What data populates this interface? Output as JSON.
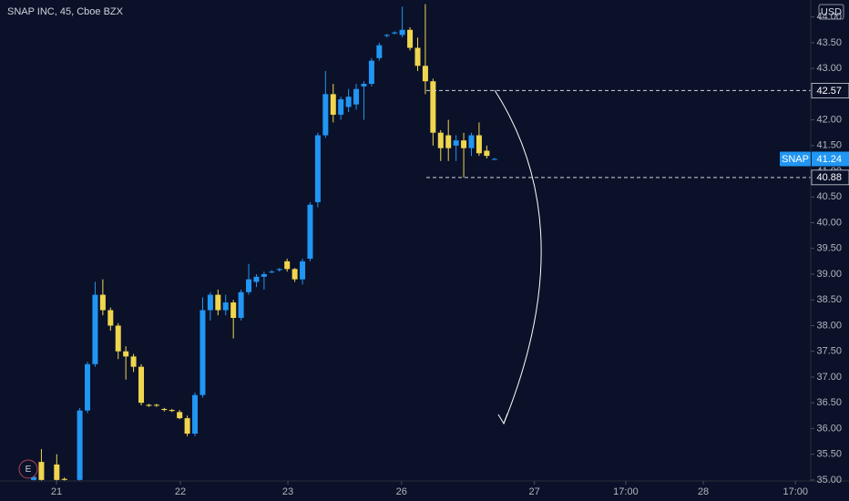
{
  "chart_data": {
    "type": "candlestick",
    "title": "SNAP INC, 45, Cboe BZX",
    "currency": "USD",
    "up_color": "#2196f3",
    "down_color": "#f0d64e",
    "x": [
      0,
      1,
      3,
      4,
      6,
      7,
      8,
      9,
      10,
      11,
      12,
      13,
      14,
      15,
      16,
      17,
      18,
      19,
      20,
      21,
      22,
      23,
      24,
      25,
      26,
      27,
      28,
      29,
      30,
      31,
      32,
      33,
      34,
      35,
      36,
      37,
      38,
      39,
      40,
      41,
      42,
      43,
      44,
      45,
      46,
      47,
      48,
      49,
      50,
      51,
      52,
      53,
      54,
      55,
      56,
      57,
      58,
      59,
      60
    ],
    "open": [
      35.0,
      35.35,
      35.3,
      35.02,
      35.0,
      36.35,
      37.25,
      38.6,
      38.3,
      38.0,
      37.5,
      37.4,
      37.2,
      36.46,
      36.46,
      36.38,
      36.36,
      36.32,
      36.2,
      35.9,
      36.65,
      38.3,
      38.6,
      38.3,
      38.45,
      38.15,
      38.65,
      38.85,
      38.95,
      39.04,
      39.08,
      39.25,
      39.1,
      38.9,
      39.3,
      40.4,
      41.7,
      42.5,
      42.1,
      42.25,
      42.3,
      42.65,
      42.7,
      43.2,
      43.64,
      43.68,
      43.65,
      43.75,
      43.4,
      43.05,
      42.75,
      41.75,
      41.7,
      41.5,
      41.6,
      41.45,
      41.7,
      41.4,
      41.24
    ],
    "high": [
      35.08,
      35.6,
      35.5,
      35.05,
      36.4,
      37.3,
      38.85,
      38.9,
      38.35,
      38.05,
      37.6,
      37.45,
      37.25,
      36.48,
      36.48,
      36.4,
      36.38,
      36.36,
      36.25,
      36.7,
      38.55,
      38.65,
      38.7,
      38.6,
      38.5,
      38.7,
      39.2,
      39.0,
      39.05,
      39.08,
      39.12,
      39.3,
      39.12,
      39.3,
      40.4,
      41.75,
      42.95,
      42.7,
      42.45,
      42.6,
      42.7,
      42.75,
      43.2,
      43.5,
      43.67,
      43.72,
      44.2,
      43.8,
      43.6,
      44.25,
      42.8,
      41.8,
      42.0,
      41.7,
      41.75,
      41.75,
      41.95,
      41.5,
      41.26
    ],
    "low": [
      34.98,
      34.98,
      34.98,
      34.98,
      34.98,
      36.3,
      37.2,
      38.2,
      37.9,
      37.35,
      36.95,
      37.1,
      36.45,
      36.42,
      36.42,
      36.33,
      36.32,
      36.18,
      35.85,
      35.85,
      36.6,
      38.1,
      38.2,
      38.2,
      37.75,
      38.1,
      38.6,
      38.75,
      38.7,
      39.02,
      39.05,
      39.05,
      38.85,
      38.8,
      39.25,
      40.3,
      41.65,
      41.95,
      42.0,
      42.15,
      42.2,
      42.0,
      42.65,
      43.15,
      43.6,
      43.66,
      43.6,
      43.35,
      42.95,
      42.5,
      41.5,
      41.2,
      41.2,
      41.2,
      40.88,
      41.3,
      41.3,
      41.25,
      41.22
    ],
    "close": [
      35.06,
      35.0,
      35.0,
      35.0,
      36.35,
      37.25,
      38.6,
      38.3,
      38.0,
      37.5,
      37.4,
      37.2,
      36.5,
      36.44,
      36.45,
      36.36,
      36.34,
      36.2,
      35.9,
      36.65,
      38.3,
      38.6,
      38.3,
      38.45,
      38.15,
      38.65,
      38.9,
      38.95,
      39.0,
      39.05,
      39.1,
      39.1,
      38.9,
      39.25,
      40.35,
      41.7,
      42.5,
      42.1,
      42.4,
      42.45,
      42.6,
      42.7,
      43.15,
      43.45,
      43.65,
      43.7,
      43.75,
      43.4,
      43.05,
      42.75,
      41.75,
      41.45,
      41.45,
      41.6,
      41.45,
      41.7,
      41.35,
      41.3,
      41.24
    ],
    "xlim": [
      -4.39,
      101.19
    ],
    "ylim": [
      34.98,
      44.33
    ],
    "xticks": [
      {
        "value": 2.97,
        "label": "21"
      },
      {
        "value": 19.1,
        "label": "22"
      },
      {
        "value": 33.1,
        "label": "23"
      },
      {
        "value": 47.9,
        "label": "26"
      },
      {
        "value": 65.2,
        "label": "27"
      },
      {
        "value": 77.1,
        "label": "17:00"
      },
      {
        "value": 87.2,
        "label": "28"
      },
      {
        "value": 99.2,
        "label": "17:00"
      }
    ],
    "yticks": [
      {
        "value": 35,
        "label": "35.00"
      },
      {
        "value": 35.5,
        "label": "35.50"
      },
      {
        "value": 36,
        "label": "36.00"
      },
      {
        "value": 36.5,
        "label": "36.50"
      },
      {
        "value": 37,
        "label": "37.00"
      },
      {
        "value": 37.5,
        "label": "37.50"
      },
      {
        "value": 38,
        "label": "38.00"
      },
      {
        "value": 38.5,
        "label": "38.50"
      },
      {
        "value": 39,
        "label": "39.00"
      },
      {
        "value": 39.5,
        "label": "39.50"
      },
      {
        "value": 40,
        "label": "40.00"
      },
      {
        "value": 40.5,
        "label": "40.50"
      },
      {
        "value": 41,
        "label": "41.00"
      },
      {
        "value": 41.5,
        "label": "41.50"
      },
      {
        "value": 42,
        "label": "42.00"
      },
      {
        "value": 42.5,
        "label": "42.50"
      },
      {
        "value": 43,
        "label": "43.00"
      },
      {
        "value": 43.5,
        "label": "43.50"
      },
      {
        "value": 44,
        "label": "44.00"
      }
    ],
    "hlines": [
      42.57,
      40.88
    ],
    "last_price": {
      "name": "SNAP",
      "value": 41.24
    },
    "earnings_marker": "E"
  }
}
